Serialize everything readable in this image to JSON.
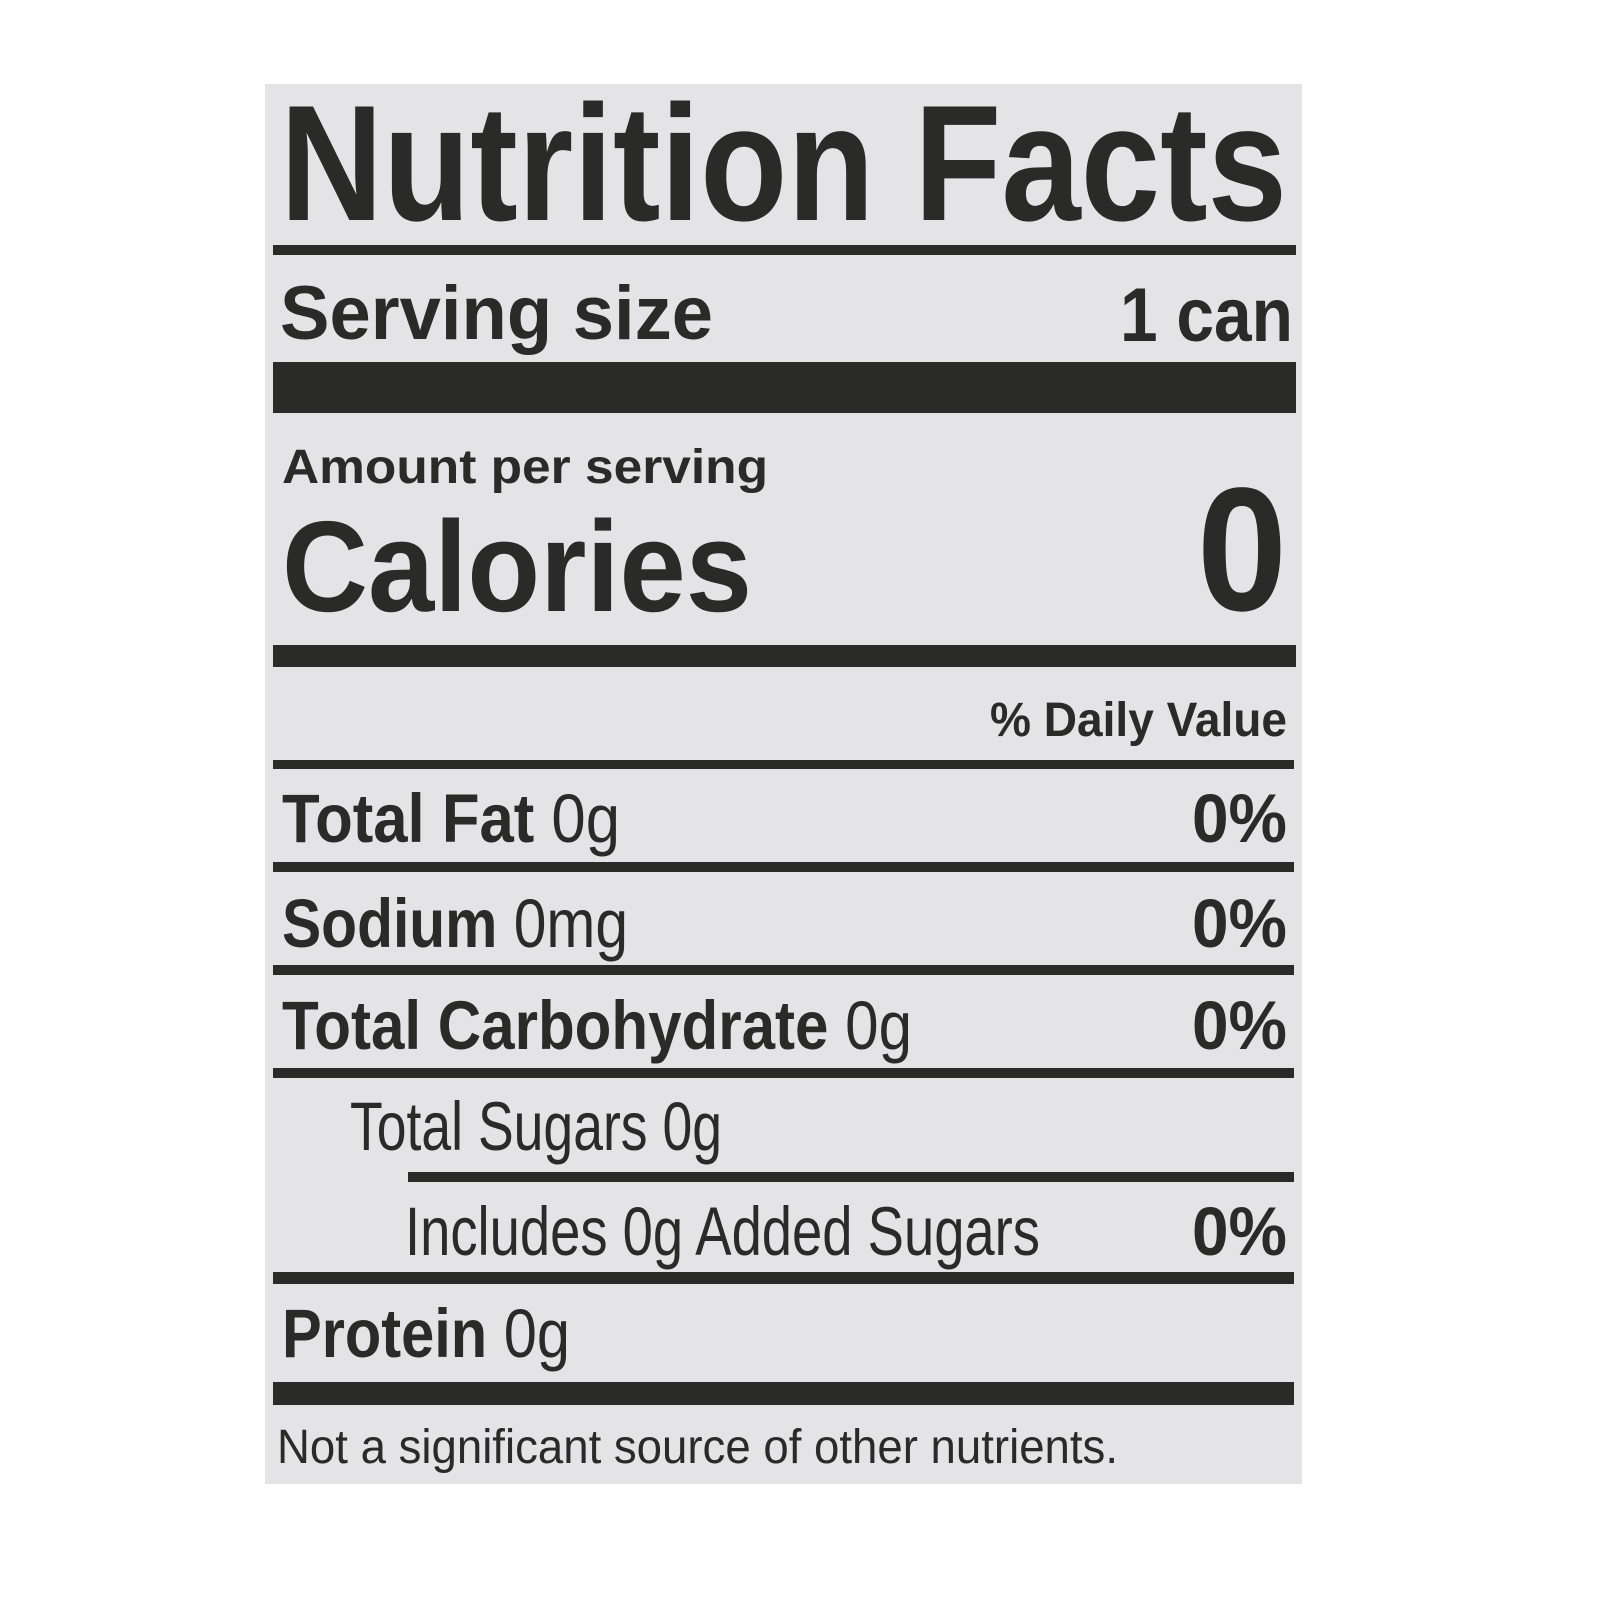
{
  "label": {
    "title": "Nutrition Facts",
    "serving": {
      "label": "Serving size",
      "value": "1 can"
    },
    "amount_per_serving": "Amount per serving",
    "calories": {
      "label": "Calories",
      "value": "0"
    },
    "daily_value_header": "% Daily Value",
    "nutrients": [
      {
        "name": "Total Fat",
        "amount": "0g",
        "dv": "0%"
      },
      {
        "name": "Sodium",
        "amount": "0mg",
        "dv": "0%"
      },
      {
        "name": "Total Carbohydrate",
        "amount": "0g",
        "dv": "0%"
      },
      {
        "name": "Total Sugars",
        "amount": "0g"
      },
      {
        "name": "Includes 0g Added Sugars",
        "dv": "0%"
      },
      {
        "name": "Protein",
        "amount": "0g"
      }
    ],
    "footnote": "Not a significant source of other nutrients."
  },
  "colors": {
    "ink": "#2a2a28",
    "background": "#e4e4e6"
  }
}
